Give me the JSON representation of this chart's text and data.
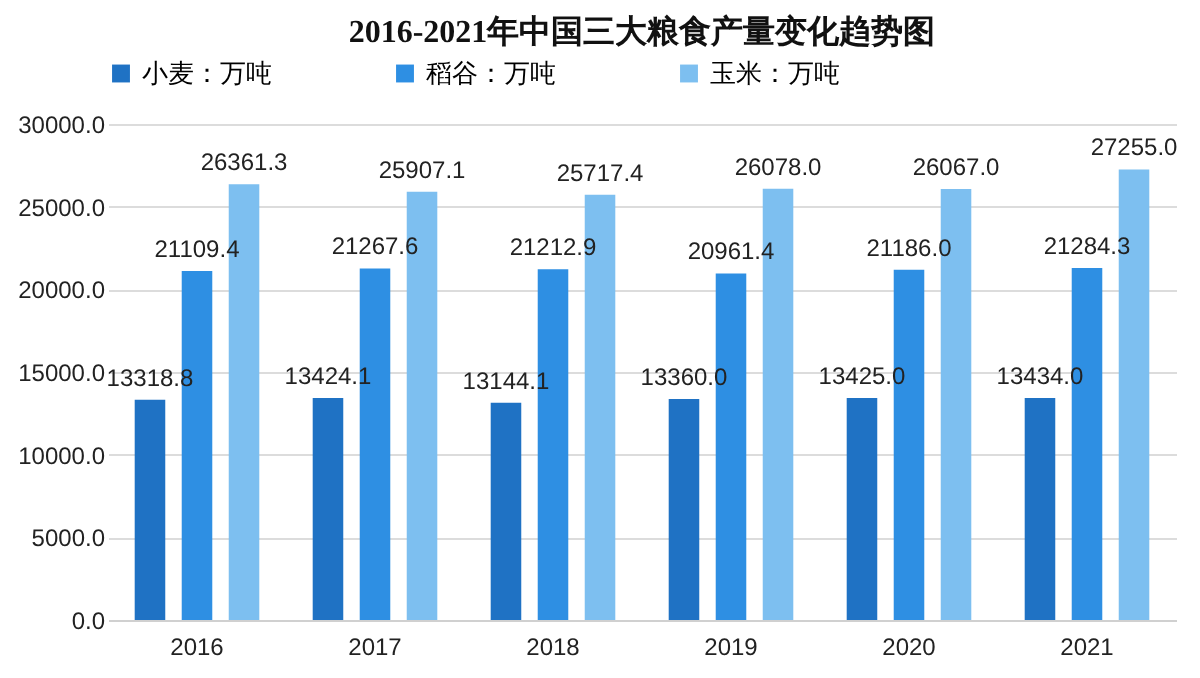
{
  "chart_data": {
    "type": "bar",
    "title": "2016-2021年中国三大粮食产量变化趋势图",
    "categories": [
      "2016",
      "2017",
      "2018",
      "2019",
      "2020",
      "2021"
    ],
    "series": [
      {
        "name": "小麦：万吨",
        "color": "#1f72c4",
        "values": [
          13318.8,
          13424.1,
          13144.1,
          13360.0,
          13425.0,
          13434.0
        ],
        "value_labels": [
          "13318.8",
          "13424.1",
          "13144.1",
          "13360.0",
          "13425.0",
          "13434.0"
        ]
      },
      {
        "name": "稻谷：万吨",
        "color": "#2e8fe3",
        "values": [
          21109.4,
          21267.6,
          21212.9,
          20961.4,
          21186.0,
          21284.3
        ],
        "value_labels": [
          "21109.4",
          "21267.6",
          "21212.9",
          "20961.4",
          "21186.0",
          "21284.3"
        ]
      },
      {
        "name": "玉米：万吨",
        "color": "#7dbff0",
        "values": [
          26361.3,
          25907.1,
          25717.4,
          26078.0,
          26067.0,
          27255.0
        ],
        "value_labels": [
          "26361.3",
          "25907.1",
          "25717.4",
          "26078.0",
          "26067.0",
          "27255.0"
        ]
      }
    ],
    "ylim": [
      0,
      30000
    ],
    "yticks": [
      {
        "value": 0,
        "label": "0.0"
      },
      {
        "value": 5000,
        "label": "5000.0"
      },
      {
        "value": 10000,
        "label": "10000.0"
      },
      {
        "value": 15000,
        "label": "15000.0"
      },
      {
        "value": 20000,
        "label": "20000.0"
      },
      {
        "value": 25000,
        "label": "25000.0"
      },
      {
        "value": 30000,
        "label": "30000.0"
      }
    ],
    "grid": "y",
    "legend": "top"
  }
}
